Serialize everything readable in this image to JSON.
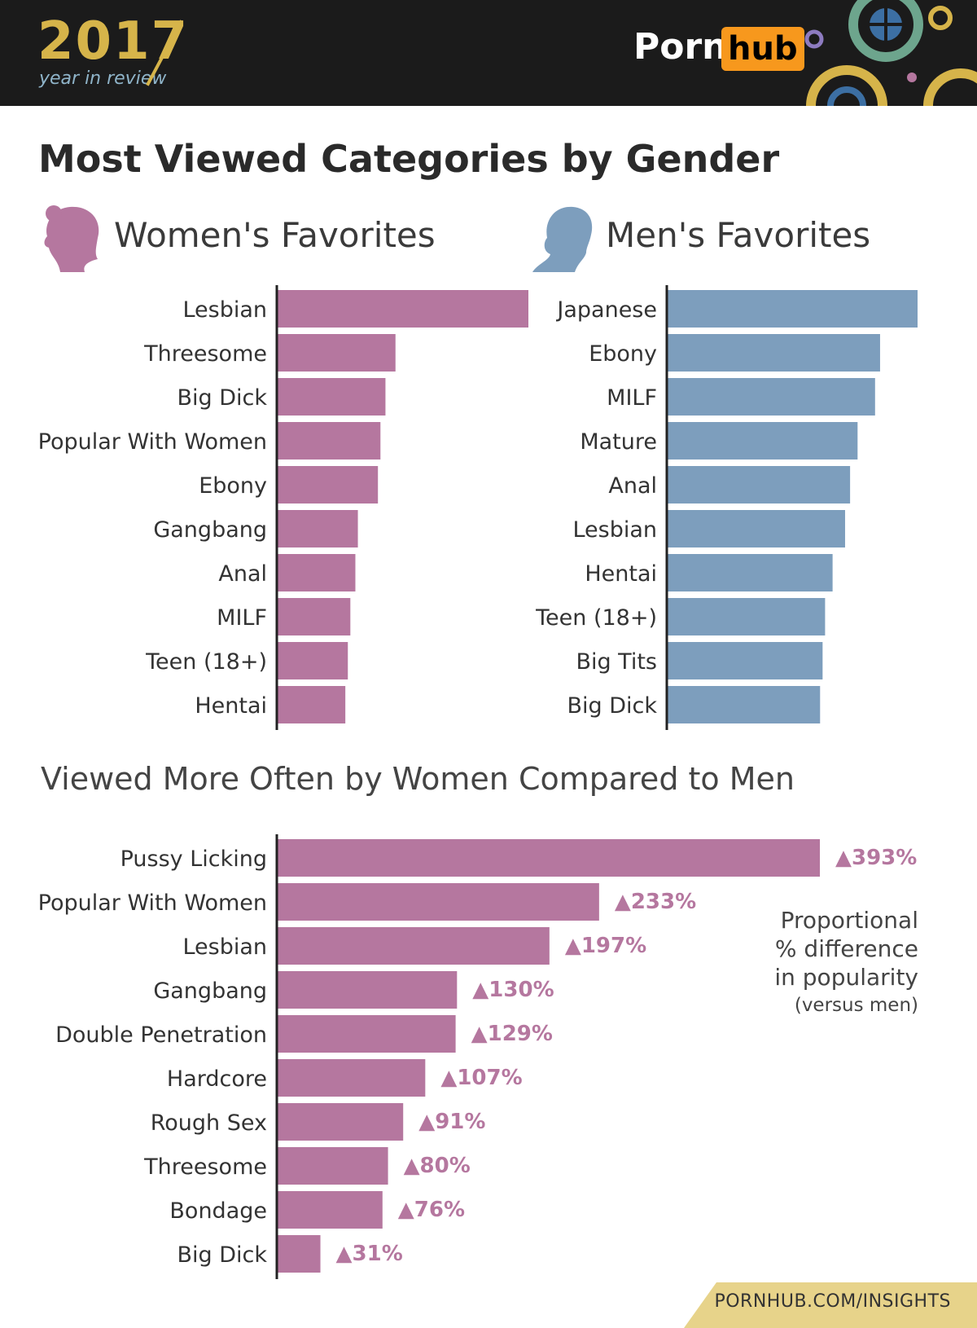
{
  "header": {
    "year": "2017",
    "year_sub": "year in review",
    "logo_porn": "Porn",
    "logo_hub": "hub"
  },
  "title": "Most Viewed Categories by Gender",
  "women_title": "Women's Favorites",
  "men_title": "Men's Favorites",
  "subtitle": "Viewed More Often by Women Compared to Men",
  "note": {
    "line1": "Proportional",
    "line2": "% difference",
    "line3": "in popularity",
    "line4": "(versus men)"
  },
  "footer_url": "PORNHUB.COM/INSIGHTS",
  "colors": {
    "women": "#b5779f",
    "men": "#7d9ebd",
    "accent": "#d6b44a"
  },
  "chart_data": [
    {
      "type": "bar",
      "orientation": "horizontal",
      "title": "Women's Favorites",
      "categories": [
        "Lesbian",
        "Threesome",
        "Big Dick",
        "Popular With Women",
        "Ebony",
        "Gangbang",
        "Anal",
        "MILF",
        "Teen (18+)",
        "Hentai"
      ],
      "values": [
        100,
        47,
        43,
        41,
        40,
        32,
        31,
        29,
        28,
        27
      ],
      "xlim": [
        0,
        100
      ]
    },
    {
      "type": "bar",
      "orientation": "horizontal",
      "title": "Men's Favorites",
      "categories": [
        "Japanese",
        "Ebony",
        "MILF",
        "Mature",
        "Anal",
        "Lesbian",
        "Hentai",
        "Teen (18+)",
        "Big Tits",
        "Big Dick"
      ],
      "values": [
        100,
        85,
        83,
        76,
        73,
        71,
        66,
        63,
        62,
        61
      ],
      "xlim": [
        0,
        100
      ]
    },
    {
      "type": "bar",
      "orientation": "horizontal",
      "title": "Viewed More Often by Women Compared to Men",
      "categories": [
        "Pussy Licking",
        "Popular With Women",
        "Lesbian",
        "Gangbang",
        "Double Penetration",
        "Hardcore",
        "Rough Sex",
        "Threesome",
        "Bondage",
        "Big Dick"
      ],
      "values": [
        393,
        233,
        197,
        130,
        129,
        107,
        91,
        80,
        76,
        31
      ],
      "labels": [
        "▲393%",
        "▲233%",
        "▲197%",
        "▲130%",
        "▲129%",
        "▲107%",
        "▲91%",
        "▲80%",
        "▲76%",
        "▲31%"
      ],
      "xlim": [
        0,
        393
      ]
    }
  ]
}
